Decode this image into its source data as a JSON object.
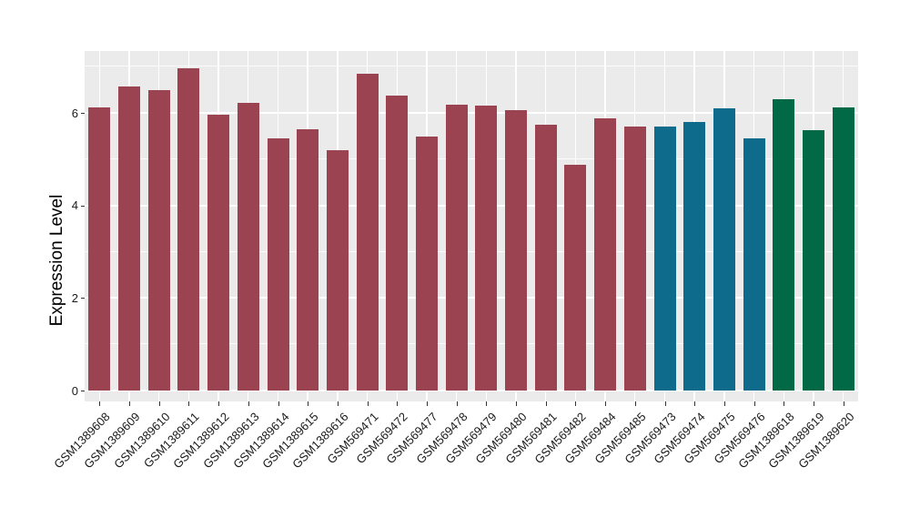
{
  "chart_data": {
    "type": "bar",
    "title": "",
    "xlabel": "",
    "ylabel": "Expression Level",
    "ylim": [
      0,
      7.34
    ],
    "yticks": [
      0,
      2,
      4,
      6
    ],
    "minor_gridlines": [
      1,
      3,
      5,
      7
    ],
    "grid": "on",
    "legend_position": "none",
    "panel_bg": "#EBEBEB",
    "gridline_color": "#FFFFFF",
    "group_colors": {
      "maroon": "#9C4352",
      "teal": "#0E6B8C",
      "green": "#016946"
    },
    "bars": [
      {
        "label": "GSM1389608",
        "value": 6.12,
        "group": "maroon"
      },
      {
        "label": "GSM1389609",
        "value": 6.58,
        "group": "maroon"
      },
      {
        "label": "GSM1389610",
        "value": 6.49,
        "group": "maroon"
      },
      {
        "label": "GSM1389611",
        "value": 6.97,
        "group": "maroon"
      },
      {
        "label": "GSM1389612",
        "value": 5.97,
        "group": "maroon"
      },
      {
        "label": "GSM1389613",
        "value": 6.22,
        "group": "maroon"
      },
      {
        "label": "GSM1389614",
        "value": 5.44,
        "group": "maroon"
      },
      {
        "label": "GSM1389615",
        "value": 5.64,
        "group": "maroon"
      },
      {
        "label": "GSM1389616",
        "value": 5.2,
        "group": "maroon"
      },
      {
        "label": "GSM569471",
        "value": 6.84,
        "group": "maroon"
      },
      {
        "label": "GSM569472",
        "value": 6.37,
        "group": "maroon"
      },
      {
        "label": "GSM569477",
        "value": 5.48,
        "group": "maroon"
      },
      {
        "label": "GSM569478",
        "value": 6.17,
        "group": "maroon"
      },
      {
        "label": "GSM569479",
        "value": 6.15,
        "group": "maroon"
      },
      {
        "label": "GSM569480",
        "value": 6.06,
        "group": "maroon"
      },
      {
        "label": "GSM569481",
        "value": 5.74,
        "group": "maroon"
      },
      {
        "label": "GSM569482",
        "value": 4.88,
        "group": "maroon"
      },
      {
        "label": "GSM569484",
        "value": 5.88,
        "group": "maroon"
      },
      {
        "label": "GSM569485",
        "value": 5.7,
        "group": "maroon"
      },
      {
        "label": "GSM569473",
        "value": 5.7,
        "group": "teal"
      },
      {
        "label": "GSM569474",
        "value": 5.8,
        "group": "teal"
      },
      {
        "label": "GSM569475",
        "value": 6.09,
        "group": "teal"
      },
      {
        "label": "GSM569476",
        "value": 5.45,
        "group": "teal"
      },
      {
        "label": "GSM1389618",
        "value": 6.29,
        "group": "green"
      },
      {
        "label": "GSM1389619",
        "value": 5.62,
        "group": "green"
      },
      {
        "label": "GSM1389620",
        "value": 6.11,
        "group": "green"
      }
    ]
  }
}
